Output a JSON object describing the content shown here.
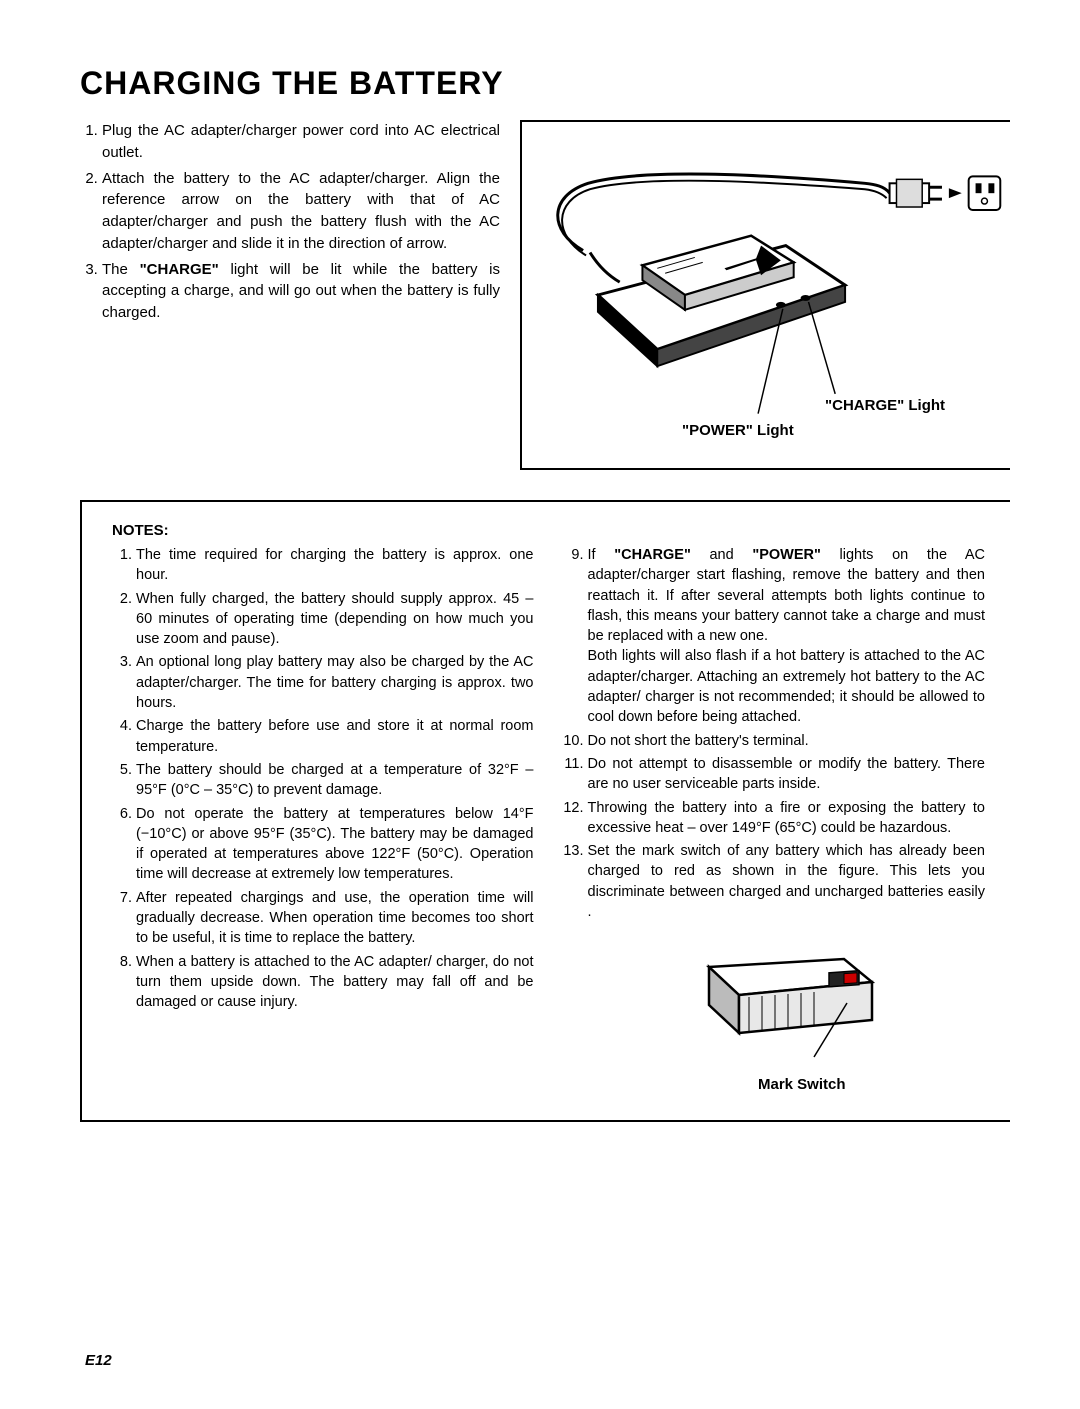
{
  "title": "CHARGING THE BATTERY",
  "instructions": [
    "Plug the AC adapter/charger power cord into AC electrical outlet.",
    "Attach the battery to the AC adapter/charger. Align the reference arrow on the battery with that of AC adapter/charger and push the battery flush with the AC adapter/charger and slide it in the direction of arrow.",
    "The <b>\"CHARGE\"</b> light will be lit while the battery is accepting a charge, and will go out when the battery is fully charged."
  ],
  "fig_top": {
    "charge_label": "\"CHARGE\" Light",
    "power_label": "\"POWER\" Light"
  },
  "notes_heading": "NOTES:",
  "notes_left": [
    "The time required for charging the battery is approx. one hour.",
    "When fully charged, the battery should supply approx. 45 – 60 minutes of operating time (depending on how much you use zoom and pause).",
    "An optional long play battery may also be charged by the AC adapter/charger. The time for battery charging is approx. two hours.",
    "Charge the battery before use and store it at normal room temperature.",
    "The battery should be charged at a temperature of 32°F – 95°F (0°C – 35°C) to prevent damage.",
    "Do not operate the battery at temperatures below 14°F (−10°C) or above 95°F (35°C). The battery may be damaged if operated at temperatures above 122°F (50°C). Operation time will decrease at extremely low temperatures.",
    "After repeated chargings and use, the operation time will gradually decrease. When operation time becomes too short to be useful, it is time to replace the battery.",
    "When a battery is attached to the AC adapter/ charger, do not turn them upside down. The battery may fall off and be damaged or cause injury."
  ],
  "notes_right_start": 9,
  "notes_right": [
    "If <b>\"CHARGE\"</b> and <b>\"POWER\"</b> lights on the AC adapter/charger start flashing, remove the battery and then reattach it. If after several attempts both lights continue to flash, this means your battery cannot take a charge and must be replaced with a new one.<br>Both lights will also flash if a hot battery is attached to the AC adapter/charger. Attaching an extremely hot battery to the AC adapter/ charger is not recommended; it should be allowed to cool down before being attached.",
    "Do not short the battery's terminal.",
    "Do not attempt to disassemble or modify the battery. There are no user serviceable parts inside.",
    "Throwing the battery into a fire or exposing the battery to excessive heat – over 149°F (65°C) could be hazardous.",
    "Set the mark switch of any battery which has already been charged to red as shown in the figure. This lets you discriminate between charged and uncharged batteries easily ."
  ],
  "mark_label": "Mark Switch",
  "page_num": "E12",
  "colors": {
    "text": "#000000",
    "bg": "#ffffff",
    "line": "#000000"
  }
}
